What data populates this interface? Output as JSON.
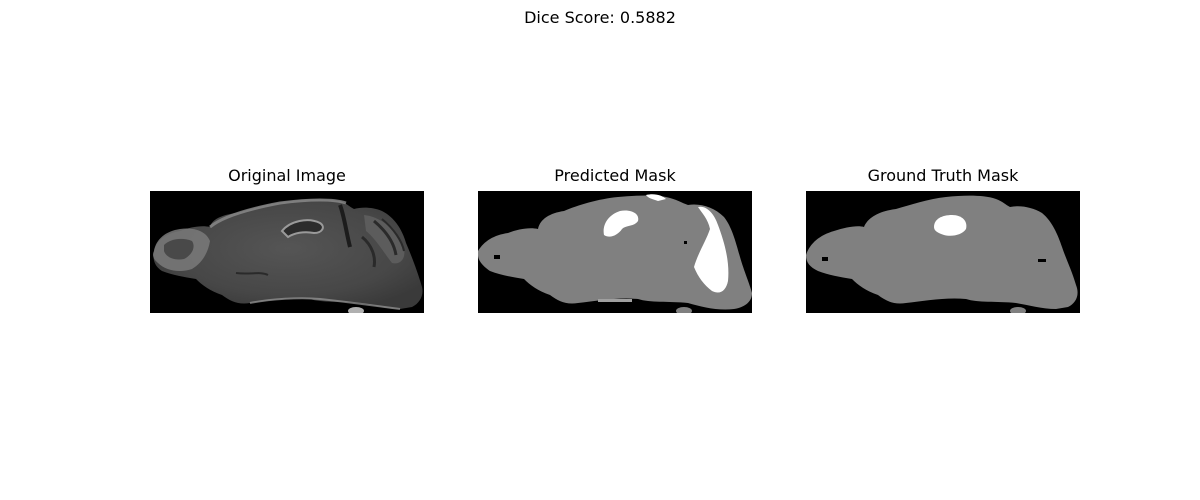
{
  "figure": {
    "suptitle": "Dice Score: 0.5882"
  },
  "panels": [
    {
      "title": "Original Image"
    },
    {
      "title": "Predicted Mask"
    },
    {
      "title": "Ground Truth Mask"
    }
  ],
  "colors": {
    "background": "#000000",
    "tissue_mask": "#808080",
    "foreground_class": "#ffffff"
  }
}
